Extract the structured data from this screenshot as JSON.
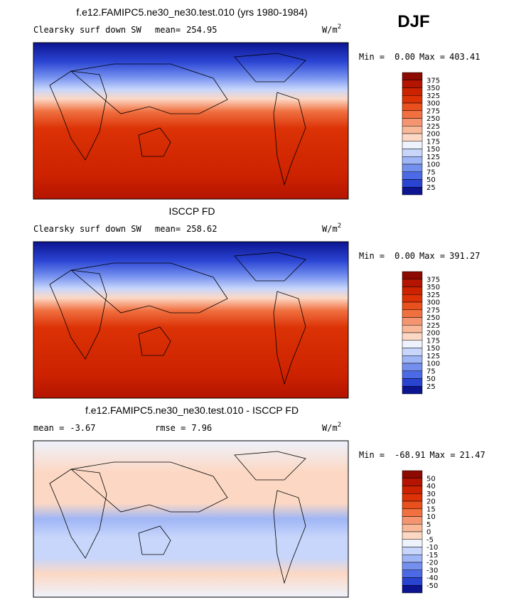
{
  "season": "DJF",
  "panels": [
    {
      "title": "f.e12.FAMIPC5.ne30_ne30.test.010 (yrs 1980-1984)",
      "variable": "Clearsky surf down SW",
      "stats": [
        {
          "label": "mean=",
          "value": "254.95"
        }
      ],
      "units": "W/m",
      "units_exp": "2",
      "min_label": "Min =",
      "min": "0.00",
      "max_label": "Max =",
      "max": "403.41",
      "levels": [
        375,
        350,
        325,
        300,
        275,
        250,
        225,
        200,
        175,
        150,
        125,
        100,
        75,
        50,
        25
      ],
      "colors": [
        "#8c0a00",
        "#b41400",
        "#cc2200",
        "#dc3206",
        "#e8501e",
        "#f07040",
        "#f59470",
        "#f9b898",
        "#fcd8c4",
        "#eef2fc",
        "#c8d6fb",
        "#9fb6f6",
        "#7490ef",
        "#4c6ae6",
        "#2a44d2",
        "#0c1490"
      ]
    },
    {
      "title": "ISCCP FD",
      "variable": "Clearsky surf down SW",
      "stats": [
        {
          "label": "mean=",
          "value": "258.62"
        }
      ],
      "units": "W/m",
      "units_exp": "2",
      "min_label": "Min =",
      "min": "0.00",
      "max_label": "Max =",
      "max": "391.27",
      "levels": [
        375,
        350,
        325,
        300,
        275,
        250,
        225,
        200,
        175,
        150,
        125,
        100,
        75,
        50,
        25
      ],
      "colors": [
        "#8c0a00",
        "#b41400",
        "#cc2200",
        "#dc3206",
        "#e8501e",
        "#f07040",
        "#f59470",
        "#f9b898",
        "#fcd8c4",
        "#eef2fc",
        "#c8d6fb",
        "#9fb6f6",
        "#7490ef",
        "#4c6ae6",
        "#2a44d2",
        "#0c1490"
      ]
    },
    {
      "title": "f.e12.FAMIPC5.ne30_ne30.test.010 - ISCCP FD",
      "variable": null,
      "stats": [
        {
          "label": "mean =",
          "value": "-3.67"
        },
        {
          "label": "rmse =",
          "value": "7.96"
        }
      ],
      "units": "W/m",
      "units_exp": "2",
      "min_label": "Min =",
      "min": "-68.91",
      "max_label": "Max =",
      "max": "21.47",
      "levels": [
        50,
        40,
        30,
        20,
        15,
        10,
        5,
        0,
        -5,
        -10,
        -15,
        -20,
        -30,
        -40,
        -50
      ],
      "colors": [
        "#8c0a00",
        "#b41400",
        "#cc2200",
        "#dc3206",
        "#e8501e",
        "#f07040",
        "#f59470",
        "#f9b898",
        "#fcd8c4",
        "#eef2fc",
        "#c8d6fb",
        "#9fb6f6",
        "#7490ef",
        "#4c6ae6",
        "#2a44d2",
        "#0c1490"
      ]
    }
  ]
}
